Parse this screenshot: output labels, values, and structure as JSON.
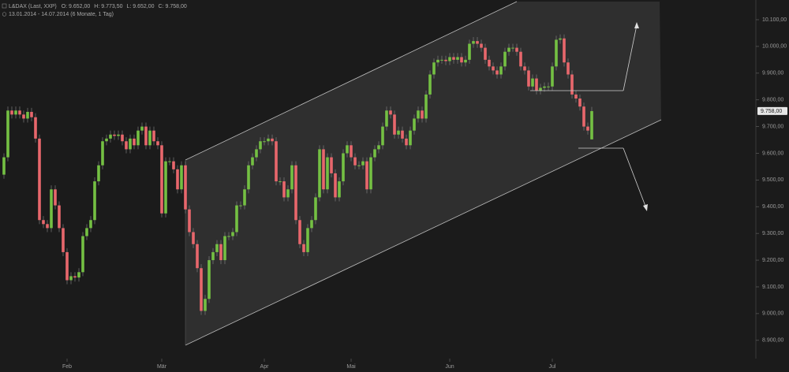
{
  "chart_data": {
    "type": "candlestick",
    "title": "L&DAX (Last, XXP)",
    "header_values": [
      "O: 9.652,00",
      "H: 9.773,50",
      "L: 9.652,00",
      "C: 9.758,00"
    ],
    "subtitle": "13.01.2014 - 14.07.2014 (6 Monate, 1 Tag)",
    "up_color": "#74c043",
    "down_color": "#e8676c",
    "ylim": [
      8831.5,
      10173.75
    ],
    "yticks": [
      {
        "value": 8900,
        "label": "8.900,00"
      },
      {
        "value": 9000,
        "label": "9.000,00"
      },
      {
        "value": 9100,
        "label": "9.100,00"
      },
      {
        "value": 9200,
        "label": "9.200,00"
      },
      {
        "value": 9300,
        "label": "9.300,00"
      },
      {
        "value": 9400,
        "label": "9.400,00"
      },
      {
        "value": 9500,
        "label": "9.500,00"
      },
      {
        "value": 9600,
        "label": "9.600,00"
      },
      {
        "value": 9700,
        "label": "9.700,00"
      },
      {
        "value": 9800,
        "label": "9.800,00"
      },
      {
        "value": 9900,
        "label": "9.900,00"
      },
      {
        "value": 10000,
        "label": "10.000,00"
      },
      {
        "value": 10100,
        "label": "10.100,00"
      }
    ],
    "xticks": [
      {
        "value": 16,
        "label": "Feb"
      },
      {
        "value": 40,
        "label": "Mär"
      },
      {
        "value": 66,
        "label": "Apr"
      },
      {
        "value": 88,
        "label": "Mai"
      },
      {
        "value": 113,
        "label": "Jun"
      },
      {
        "value": 139,
        "label": "Jul"
      }
    ],
    "last_price": {
      "value": 9758,
      "label": "9.758,00"
    },
    "open": [
      9520,
      9585,
      9760,
      9745,
      9760,
      9745,
      9730,
      9755,
      9735,
      9655,
      9350,
      9335,
      9320,
      9465,
      9405,
      9320,
      9230,
      9125,
      9140,
      9135,
      9155,
      9290,
      9320,
      9350,
      9495,
      9555,
      9645,
      9655,
      9670,
      9665,
      9670,
      9645,
      9615,
      9655,
      9630,
      9685,
      9700,
      9630,
      9685,
      9645,
      9630,
      9375,
      9570,
      9570,
      9540,
      9465,
      9555,
      9390,
      9305,
      9260,
      9170,
      9010,
      9055,
      9200,
      9230,
      9260,
      9200,
      9290,
      9290,
      9305,
      9405,
      9405,
      9465,
      9555,
      9585,
      9615,
      9645,
      9645,
      9655,
      9645,
      9495,
      9495,
      9435,
      9465,
      9555,
      9350,
      9260,
      9230,
      9320,
      9350,
      9435,
      9615,
      9465,
      9585,
      9525,
      9435,
      9495,
      9600,
      9630,
      9585,
      9555,
      9555,
      9570,
      9465,
      9585,
      9615,
      9630,
      9700,
      9760,
      9745,
      9670,
      9685,
      9655,
      9630,
      9685,
      9730,
      9760,
      9730,
      9820,
      9895,
      9940,
      9950,
      9950,
      9945,
      9960,
      9950,
      9960,
      9940,
      9950,
      10010,
      10020,
      10010,
      9995,
      9950,
      9925,
      9910,
      9895,
      9925,
      9980,
      9995,
      9995,
      9980,
      9925,
      9910,
      9850,
      9880,
      9835,
      9845,
      9850,
      9850,
      9925,
      10025,
      10030,
      9940,
      9895,
      9820,
      9805,
      9775,
      9700,
      9652
    ],
    "high": [
      9600,
      9775,
      9775,
      9775,
      9775,
      9760,
      9770,
      9770,
      9750,
      9670,
      9365,
      9350,
      9480,
      9480,
      9420,
      9335,
      9245,
      9155,
      9155,
      9170,
      9305,
      9335,
      9365,
      9510,
      9570,
      9660,
      9670,
      9685,
      9685,
      9685,
      9685,
      9660,
      9670,
      9670,
      9700,
      9715,
      9715,
      9700,
      9700,
      9660,
      9645,
      9585,
      9585,
      9585,
      9555,
      9570,
      9570,
      9405,
      9320,
      9275,
      9185,
      9070,
      9215,
      9245,
      9275,
      9275,
      9305,
      9305,
      9320,
      9420,
      9420,
      9480,
      9570,
      9600,
      9630,
      9660,
      9660,
      9670,
      9670,
      9660,
      9510,
      9510,
      9480,
      9570,
      9570,
      9365,
      9275,
      9335,
      9365,
      9450,
      9630,
      9630,
      9600,
      9600,
      9540,
      9510,
      9615,
      9645,
      9645,
      9600,
      9570,
      9585,
      9585,
      9600,
      9630,
      9645,
      9715,
      9775,
      9775,
      9760,
      9700,
      9700,
      9670,
      9700,
      9745,
      9775,
      9775,
      9835,
      9910,
      9955,
      9965,
      9965,
      9965,
      9975,
      9975,
      9975,
      9975,
      9965,
      10025,
      10035,
      10035,
      10025,
      10010,
      9965,
      9940,
      9925,
      9940,
      9995,
      10010,
      10010,
      10010,
      9995,
      9940,
      9925,
      9895,
      9895,
      9860,
      9865,
      9865,
      9940,
      10040,
      10045,
      10045,
      9955,
      9910,
      9835,
      9820,
      9790,
      9715,
      9773.5
    ],
    "low": [
      9505,
      9570,
      9730,
      9730,
      9730,
      9715,
      9715,
      9720,
      9640,
      9335,
      9320,
      9305,
      9305,
      9390,
      9305,
      9215,
      9110,
      9110,
      9120,
      9120,
      9140,
      9275,
      9305,
      9335,
      9480,
      9540,
      9630,
      9640,
      9650,
      9650,
      9630,
      9600,
      9600,
      9615,
      9615,
      9670,
      9615,
      9615,
      9630,
      9615,
      9360,
      9360,
      9555,
      9525,
      9450,
      9450,
      9375,
      9290,
      9245,
      9155,
      8995,
      8995,
      9040,
      9185,
      9215,
      9185,
      9185,
      9275,
      9275,
      9290,
      9390,
      9390,
      9450,
      9540,
      9570,
      9600,
      9630,
      9630,
      9630,
      9480,
      9480,
      9420,
      9420,
      9450,
      9335,
      9245,
      9215,
      9215,
      9305,
      9335,
      9420,
      9450,
      9450,
      9510,
      9420,
      9420,
      9480,
      9585,
      9570,
      9540,
      9540,
      9540,
      9450,
      9450,
      9570,
      9600,
      9615,
      9685,
      9730,
      9655,
      9655,
      9640,
      9615,
      9615,
      9670,
      9715,
      9715,
      9715,
      9805,
      9880,
      9925,
      9935,
      9930,
      9930,
      9935,
      9935,
      9925,
      9925,
      9935,
      9995,
      9995,
      9980,
      9935,
      9910,
      9895,
      9880,
      9880,
      9910,
      9965,
      9980,
      9965,
      9910,
      9895,
      9835,
      9835,
      9820,
      9820,
      9830,
      9835,
      9835,
      9910,
      10010,
      9925,
      9880,
      9805,
      9790,
      9760,
      9685,
      9670,
      9652
    ],
    "close": [
      9585,
      9760,
      9745,
      9760,
      9745,
      9730,
      9755,
      9735,
      9655,
      9350,
      9335,
      9320,
      9465,
      9405,
      9320,
      9230,
      9125,
      9140,
      9135,
      9155,
      9290,
      9320,
      9350,
      9495,
      9555,
      9645,
      9655,
      9670,
      9665,
      9670,
      9645,
      9615,
      9655,
      9630,
      9685,
      9700,
      9630,
      9685,
      9645,
      9630,
      9375,
      9570,
      9570,
      9540,
      9465,
      9555,
      9390,
      9305,
      9260,
      9170,
      9010,
      9055,
      9200,
      9230,
      9260,
      9200,
      9290,
      9290,
      9305,
      9405,
      9405,
      9465,
      9555,
      9585,
      9615,
      9645,
      9645,
      9655,
      9645,
      9495,
      9495,
      9435,
      9465,
      9555,
      9350,
      9260,
      9230,
      9320,
      9350,
      9435,
      9615,
      9465,
      9585,
      9525,
      9435,
      9495,
      9600,
      9630,
      9585,
      9555,
      9555,
      9570,
      9465,
      9585,
      9615,
      9630,
      9700,
      9760,
      9745,
      9670,
      9685,
      9655,
      9630,
      9685,
      9730,
      9760,
      9730,
      9820,
      9895,
      9940,
      9950,
      9950,
      9945,
      9960,
      9950,
      9960,
      9940,
      9950,
      10010,
      10020,
      10010,
      9995,
      9950,
      9925,
      9910,
      9895,
      9925,
      9980,
      9995,
      9995,
      9980,
      9925,
      9910,
      9850,
      9880,
      9835,
      9845,
      9850,
      9850,
      9925,
      10025,
      10030,
      9940,
      9895,
      9820,
      9805,
      9775,
      9700,
      9685,
      9758
    ]
  }
}
